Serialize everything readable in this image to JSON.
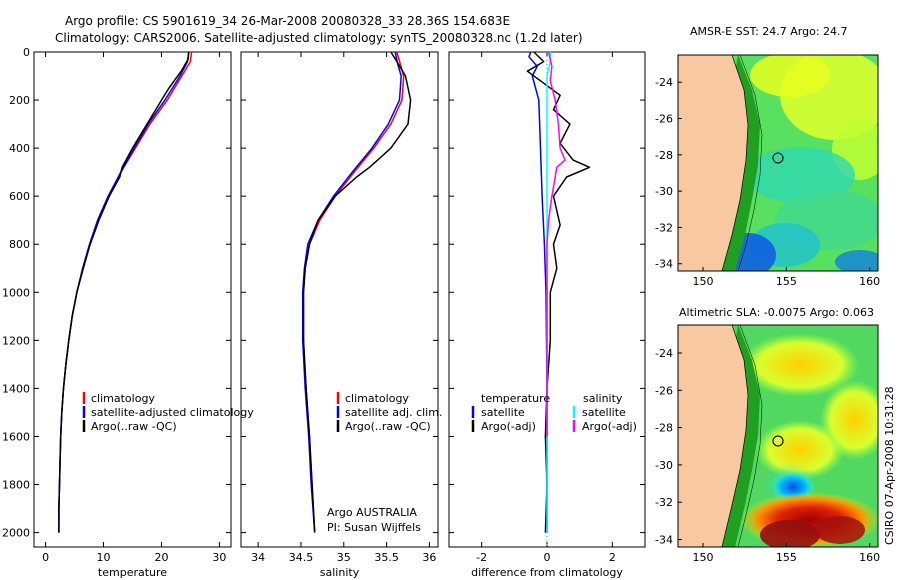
{
  "header": {
    "line1": "Argo profile: CS 5901619_34 26-Mar-2008 20080328_33 28.36S 154.683E",
    "line2": "Climatology: CARS2006. Satellite-adjusted climatology: synTS_20080328.nc (1.2d later)"
  },
  "side_note": "CSIRO 07-Apr-2008 10:31:28",
  "colors": {
    "climatology": "#ff0000",
    "satellite": "#0000ff",
    "argo": "#000000",
    "satellite_salinity": "#00ffff",
    "argo_adj_salinity": "#ff00ff",
    "land": "#f8c8a0"
  },
  "chart_data": [
    {
      "type": "line",
      "id": "temperature",
      "xlabel": "temperature",
      "xlim": [
        -2,
        32
      ],
      "ylim": [
        2060,
        0
      ],
      "xticks": [
        0,
        10,
        20,
        30
      ],
      "yticks": [
        0,
        200,
        400,
        600,
        800,
        1000,
        1200,
        1400,
        1600,
        1800,
        2000
      ],
      "legend": [
        "climatology",
        "satellite-adjusted climatology",
        "Argo(..raw -QC)"
      ],
      "series": [
        {
          "name": "climatology",
          "color": "#ff0000",
          "points": [
            [
              25.2,
              0
            ],
            [
              25.0,
              40
            ],
            [
              23.5,
              100
            ],
            [
              21.0,
              200
            ],
            [
              18.0,
              300
            ],
            [
              15.5,
              400
            ],
            [
              13.0,
              500
            ],
            [
              10.8,
              600
            ],
            [
              9.0,
              700
            ],
            [
              7.6,
              800
            ],
            [
              6.4,
              900
            ],
            [
              5.4,
              1000
            ],
            [
              4.6,
              1100
            ],
            [
              4.0,
              1200
            ],
            [
              3.5,
              1300
            ],
            [
              3.1,
              1400
            ],
            [
              2.8,
              1500
            ],
            [
              2.6,
              1600
            ],
            [
              2.5,
              1700
            ],
            [
              2.4,
              1800
            ],
            [
              2.3,
              1900
            ],
            [
              2.3,
              1950
            ]
          ]
        },
        {
          "name": "satellite-adjusted climatology",
          "color": "#0000ff",
          "points": [
            [
              24.7,
              0
            ],
            [
              24.5,
              40
            ],
            [
              23.2,
              100
            ],
            [
              20.6,
              200
            ],
            [
              17.7,
              300
            ],
            [
              15.3,
              400
            ],
            [
              13.0,
              500
            ],
            [
              10.8,
              600
            ],
            [
              9.0,
              700
            ],
            [
              7.6,
              800
            ],
            [
              6.4,
              900
            ],
            [
              5.4,
              1000
            ],
            [
              4.6,
              1100
            ],
            [
              4.0,
              1200
            ],
            [
              3.5,
              1300
            ],
            [
              3.1,
              1400
            ],
            [
              2.8,
              1500
            ],
            [
              2.6,
              1600
            ],
            [
              2.5,
              1700
            ],
            [
              2.4,
              1800
            ],
            [
              2.3,
              1900
            ],
            [
              2.3,
              2000
            ]
          ]
        },
        {
          "name": "Argo(..raw -QC)",
          "color": "#000000",
          "points": [
            [
              24.7,
              0
            ],
            [
              24.6,
              30
            ],
            [
              23.4,
              80
            ],
            [
              21.3,
              150
            ],
            [
              20.0,
              200
            ],
            [
              17.5,
              300
            ],
            [
              15.0,
              400
            ],
            [
              13.2,
              480
            ],
            [
              12.8,
              520
            ],
            [
              11.0,
              600
            ],
            [
              9.2,
              700
            ],
            [
              7.7,
              800
            ],
            [
              6.5,
              900
            ],
            [
              5.4,
              1000
            ],
            [
              4.6,
              1100
            ],
            [
              4.0,
              1200
            ],
            [
              3.5,
              1300
            ],
            [
              3.1,
              1400
            ],
            [
              2.8,
              1500
            ],
            [
              2.6,
              1600
            ],
            [
              2.5,
              1700
            ],
            [
              2.4,
              1800
            ],
            [
              2.3,
              1900
            ],
            [
              2.3,
              2000
            ]
          ]
        }
      ]
    },
    {
      "type": "line",
      "id": "salinity",
      "xlabel": "salinity",
      "xlim": [
        33.8,
        36.1
      ],
      "ylim": [
        2060,
        0
      ],
      "xticks": [
        34,
        34.5,
        35,
        35.5,
        36
      ],
      "legend": [
        "climatology",
        "satellite adj. clim.",
        "Argo(..raw -QC)"
      ],
      "annotation": [
        "Argo AUSTRALIA",
        "PI: Susan Wijffels"
      ],
      "series": [
        {
          "name": "climatology",
          "color": "#ff0000",
          "points": [
            [
              35.62,
              0
            ],
            [
              35.66,
              50
            ],
            [
              35.7,
              100
            ],
            [
              35.68,
              200
            ],
            [
              35.55,
              300
            ],
            [
              35.35,
              400
            ],
            [
              35.12,
              500
            ],
            [
              34.9,
              600
            ],
            [
              34.72,
              700
            ],
            [
              34.6,
              800
            ],
            [
              34.55,
              900
            ],
            [
              34.53,
              1000
            ],
            [
              34.53,
              1200
            ],
            [
              34.56,
              1400
            ],
            [
              34.6,
              1600
            ],
            [
              34.63,
              1800
            ],
            [
              34.66,
              2000
            ]
          ]
        },
        {
          "name": "satellite adj. clim.",
          "color": "#0000ff",
          "points": [
            [
              35.6,
              0
            ],
            [
              35.63,
              50
            ],
            [
              35.67,
              100
            ],
            [
              35.65,
              200
            ],
            [
              35.52,
              300
            ],
            [
              35.33,
              400
            ],
            [
              35.1,
              500
            ],
            [
              34.88,
              600
            ],
            [
              34.7,
              700
            ],
            [
              34.58,
              800
            ],
            [
              34.54,
              900
            ],
            [
              34.52,
              1000
            ],
            [
              34.52,
              1200
            ],
            [
              34.55,
              1400
            ],
            [
              34.59,
              1600
            ],
            [
              34.62,
              1800
            ],
            [
              34.66,
              2000
            ]
          ]
        },
        {
          "name": "Argo(..raw -QC)",
          "color": "#000000",
          "points": [
            [
              35.55,
              0
            ],
            [
              35.62,
              40
            ],
            [
              35.72,
              100
            ],
            [
              35.78,
              200
            ],
            [
              35.75,
              300
            ],
            [
              35.55,
              400
            ],
            [
              35.3,
              480
            ],
            [
              35.15,
              520
            ],
            [
              34.9,
              600
            ],
            [
              34.7,
              700
            ],
            [
              34.6,
              800
            ],
            [
              34.55,
              900
            ],
            [
              34.53,
              1000
            ],
            [
              34.53,
              1200
            ],
            [
              34.56,
              1400
            ],
            [
              34.6,
              1600
            ],
            [
              34.63,
              1800
            ],
            [
              34.66,
              2000
            ]
          ]
        }
      ]
    },
    {
      "type": "line",
      "id": "difference",
      "xlabel": "difference from climatology",
      "xlim": [
        -3,
        3
      ],
      "ylim": [
        2060,
        0
      ],
      "xticks": [
        -2,
        0,
        2
      ],
      "legend_left_title": "temperature",
      "legend_right_title": "salinity",
      "legend_left": [
        "satellite",
        "Argo(-adj)"
      ],
      "legend_right": [
        "satellite",
        "Argo(-adj)"
      ],
      "series": [
        {
          "name": "temperature satellite",
          "color": "#0000ff",
          "points": [
            [
              -0.5,
              0
            ],
            [
              -0.55,
              20
            ],
            [
              -0.3,
              60
            ],
            [
              -0.45,
              100
            ],
            [
              -0.25,
              200
            ],
            [
              -0.2,
              400
            ],
            [
              -0.15,
              600
            ],
            [
              -0.08,
              800
            ],
            [
              -0.03,
              1000
            ],
            [
              0,
              1400
            ],
            [
              0,
              2000
            ]
          ]
        },
        {
          "name": "temperature Argo(-adj)",
          "color": "#000000",
          "points": [
            [
              -0.4,
              0
            ],
            [
              -0.1,
              40
            ],
            [
              -0.6,
              80
            ],
            [
              -0.2,
              120
            ],
            [
              0.4,
              180
            ],
            [
              0.2,
              240
            ],
            [
              0.7,
              300
            ],
            [
              0.4,
              380
            ],
            [
              0.8,
              450
            ],
            [
              1.3,
              480
            ],
            [
              0.6,
              520
            ],
            [
              0.2,
              600
            ],
            [
              0.4,
              720
            ],
            [
              0.2,
              800
            ],
            [
              0.3,
              900
            ],
            [
              0.1,
              1000
            ],
            [
              0.1,
              1200
            ],
            [
              0,
              1400
            ],
            [
              -0.05,
              1600
            ],
            [
              0,
              1800
            ],
            [
              -0.05,
              2000
            ]
          ]
        },
        {
          "name": "salinity satellite",
          "color": "#00ffff",
          "points": [
            [
              0.1,
              0
            ],
            [
              0.1,
              40
            ],
            [
              0.0,
              100
            ],
            [
              0.0,
              400
            ],
            [
              0.0,
              800
            ],
            [
              0.0,
              1200
            ],
            [
              0.0,
              1600
            ],
            [
              0.0,
              2000
            ]
          ]
        },
        {
          "name": "salinity Argo(-adj)",
          "color": "#ff00ff",
          "points": [
            [
              0.05,
              0
            ],
            [
              0.15,
              60
            ],
            [
              0.1,
              120
            ],
            [
              0.25,
              200
            ],
            [
              0.35,
              300
            ],
            [
              0.4,
              400
            ],
            [
              0.55,
              450
            ],
            [
              0.3,
              480
            ],
            [
              0.25,
              520
            ],
            [
              0.15,
              600
            ],
            [
              0.05,
              700
            ],
            [
              0,
              800
            ],
            [
              0,
              1000
            ],
            [
              0,
              1400
            ],
            [
              0,
              1600
            ]
          ]
        }
      ]
    }
  ],
  "maps": [
    {
      "title": "AMSR-E SST: 24.7 Argo: 24.7",
      "xticks": [
        150,
        155,
        160
      ],
      "yticks": [
        -24,
        -26,
        -28,
        -30,
        -32,
        -34
      ],
      "lon": [
        148.5,
        160.5
      ],
      "lat": [
        -34.4,
        -22.5
      ],
      "marker": [
        154.683,
        -28.36
      ]
    },
    {
      "title": "Altimetric SLA: -0.0075 Argo: 0.063",
      "xticks": [
        150,
        155,
        160
      ],
      "yticks": [
        -24,
        -26,
        -28,
        -30,
        -32,
        -34
      ],
      "lon": [
        148.5,
        160.5
      ],
      "lat": [
        -34.4,
        -22.5
      ],
      "marker": [
        154.683,
        -28.36
      ]
    }
  ]
}
